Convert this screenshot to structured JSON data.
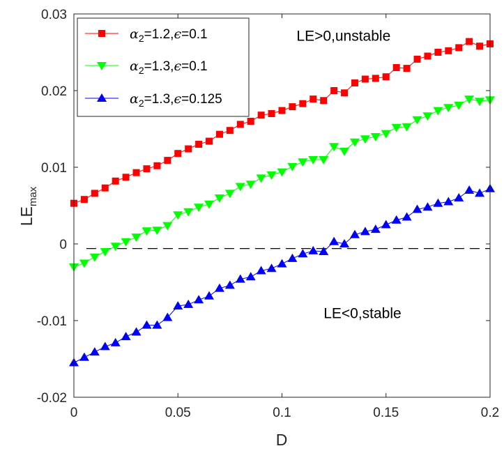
{
  "chart_data": {
    "type": "line",
    "xlabel": "D",
    "ylabel": "LE",
    "ylabel_sub": "max",
    "xlim": [
      0,
      0.2
    ],
    "ylim": [
      -0.02,
      0.03
    ],
    "xticks": [
      0,
      0.05,
      0.1,
      0.15,
      0.2
    ],
    "xtick_labels": [
      "0",
      "0.05",
      "0.1",
      "0.15",
      "0.2"
    ],
    "yticks": [
      -0.02,
      -0.01,
      0,
      0.01,
      0.02,
      0.03
    ],
    "ytick_labels": [
      "-0.02",
      "-0.01",
      "0",
      "0.01",
      "0.02",
      "0.03"
    ],
    "grid": false,
    "legend_position": "top-left",
    "reference_line": {
      "y": -0.0006,
      "x_start": 0.006,
      "x_end": 0.2,
      "style": "dashed",
      "color": "#000000"
    },
    "annotations": [
      {
        "text": "LE>0,unstable",
        "x": 0.107,
        "y": 0.0265
      },
      {
        "text": "LE<0,stable",
        "x": 0.12,
        "y": -0.0097
      }
    ],
    "x": [
      0,
      0.005,
      0.01,
      0.015,
      0.02,
      0.025,
      0.03,
      0.035,
      0.04,
      0.045,
      0.05,
      0.055,
      0.06,
      0.065,
      0.07,
      0.075,
      0.08,
      0.085,
      0.09,
      0.095,
      0.1,
      0.105,
      0.11,
      0.115,
      0.12,
      0.125,
      0.13,
      0.135,
      0.14,
      0.145,
      0.15,
      0.155,
      0.16,
      0.165,
      0.17,
      0.175,
      0.18,
      0.185,
      0.19,
      0.195,
      0.2
    ],
    "series": [
      {
        "name": "α2=1.2,ϵ=0.1",
        "legend_parts": {
          "symbol": "α",
          "sub": "2",
          "rest": "=1.2,",
          "eps": "ϵ",
          "tail": "=0.1"
        },
        "color": "#ff0000",
        "marker": "square",
        "values": [
          0.0053,
          0.0058,
          0.0066,
          0.0073,
          0.0082,
          0.0087,
          0.0093,
          0.0098,
          0.0102,
          0.0109,
          0.0118,
          0.0124,
          0.013,
          0.0134,
          0.0143,
          0.0148,
          0.0156,
          0.016,
          0.0168,
          0.017,
          0.0174,
          0.0179,
          0.0183,
          0.0189,
          0.0187,
          0.02,
          0.0197,
          0.021,
          0.0215,
          0.0216,
          0.0218,
          0.023,
          0.0229,
          0.0241,
          0.0245,
          0.025,
          0.0252,
          0.0256,
          0.0264,
          0.0258,
          0.0261
        ]
      },
      {
        "name": "α2=1.3,ϵ=0.1",
        "legend_parts": {
          "symbol": "α",
          "sub": "2",
          "rest": "=1.3,",
          "eps": "ϵ",
          "tail": "=0.1"
        },
        "color": "#00ff00",
        "marker": "triangle-down",
        "values": [
          -0.003,
          -0.0025,
          -0.0017,
          -0.001,
          -0.0003,
          0.0003,
          0.0009,
          0.0017,
          0.0018,
          0.0024,
          0.0038,
          0.0042,
          0.0048,
          0.0052,
          0.006,
          0.0066,
          0.0075,
          0.0078,
          0.0086,
          0.009,
          0.0094,
          0.0101,
          0.0107,
          0.011,
          0.011,
          0.0127,
          0.0121,
          0.0133,
          0.0137,
          0.014,
          0.0144,
          0.0152,
          0.0153,
          0.0162,
          0.0167,
          0.0174,
          0.0178,
          0.0181,
          0.0189,
          0.0186,
          0.0188
        ]
      },
      {
        "name": "α2=1.3,ϵ=0.125",
        "legend_parts": {
          "symbol": "α",
          "sub": "2",
          "rest": "=1.3,",
          "eps": "ϵ",
          "tail": "=0.125"
        },
        "color": "#0000ff",
        "marker": "triangle-up",
        "values": [
          -0.0155,
          -0.0148,
          -0.0141,
          -0.0134,
          -0.0129,
          -0.0121,
          -0.0115,
          -0.0106,
          -0.0106,
          -0.0096,
          -0.0081,
          -0.0079,
          -0.0073,
          -0.0068,
          -0.0058,
          -0.0054,
          -0.0046,
          -0.0043,
          -0.0035,
          -0.0032,
          -0.0026,
          -0.0019,
          -0.0013,
          -0.0009,
          -0.001,
          0.0003,
          0.0,
          0.0012,
          0.0016,
          0.0019,
          0.0025,
          0.0031,
          0.0035,
          0.0045,
          0.0048,
          0.0053,
          0.0055,
          0.006,
          0.007,
          0.0066,
          0.0072
        ]
      }
    ]
  }
}
